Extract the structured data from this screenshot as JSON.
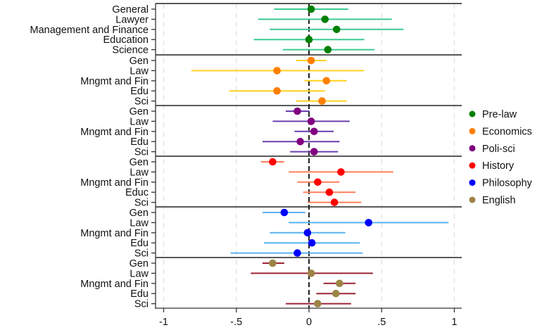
{
  "chart_data": {
    "type": "scatter",
    "subtype": "coefficient-plot-with-confidence-intervals",
    "title": "",
    "xlabel": "",
    "ylabel": "",
    "xlim": [
      -1.05,
      1.05
    ],
    "x_ticks": [
      -1,
      -0.5,
      0,
      0.5,
      1
    ],
    "x_tick_labels": [
      "-1",
      "-.5",
      "0",
      ".5",
      "1"
    ],
    "reference_line_x": 0,
    "grid": "vertical dashed at x ticks",
    "legend_position": "right",
    "series": [
      {
        "name": "Pre-law",
        "point_color": "#008000",
        "ci_color": "#3cc991",
        "labels": [
          "General",
          "Lawyer",
          "Management and Finance",
          "Education",
          "Science"
        ],
        "estimates": [
          0.015,
          0.11,
          0.19,
          0.0,
          0.13
        ],
        "ci_low": [
          -0.24,
          -0.35,
          -0.27,
          -0.38,
          -0.18
        ],
        "ci_high": [
          0.27,
          0.57,
          0.65,
          0.38,
          0.45
        ]
      },
      {
        "name": "Economics",
        "point_color": "#ff7f00",
        "ci_color": "#ffd21f",
        "labels": [
          "Gen",
          "Law",
          "Mngmt and Fin",
          "Edu",
          "Sci"
        ],
        "estimates": [
          0.015,
          -0.22,
          0.12,
          -0.22,
          0.09
        ],
        "ci_low": [
          -0.09,
          -0.81,
          -0.03,
          -0.55,
          -0.09
        ],
        "ci_high": [
          0.12,
          0.38,
          0.26,
          0.11,
          0.26
        ]
      },
      {
        "name": "Poli-sci",
        "point_color": "#800080",
        "ci_color": "#6a3fb0",
        "labels": [
          "Gen",
          "Law",
          "Mngmt and Fin",
          "Edu",
          "Sci"
        ],
        "estimates": [
          -0.08,
          0.015,
          0.035,
          -0.06,
          0.035
        ],
        "ci_low": [
          -0.16,
          -0.25,
          -0.1,
          -0.32,
          -0.13
        ],
        "ci_high": [
          0.005,
          0.28,
          0.17,
          0.21,
          0.2
        ]
      },
      {
        "name": "History",
        "point_color": "#ff0000",
        "ci_color": "#ff7f5a",
        "labels": [
          "Gen",
          "Law",
          "Mngmt and Fin",
          "Educ",
          "Sci"
        ],
        "estimates": [
          -0.25,
          0.22,
          0.06,
          0.14,
          0.175
        ],
        "ci_low": [
          -0.33,
          -0.14,
          -0.08,
          -0.04,
          -0.01
        ],
        "ci_high": [
          -0.17,
          0.58,
          0.21,
          0.32,
          0.36
        ]
      },
      {
        "name": "Philosophy",
        "point_color": "#0000ff",
        "ci_color": "#5ab4f0",
        "labels": [
          "Gen",
          "Law",
          "Mngmt and Fin",
          "Edu",
          "Sci"
        ],
        "estimates": [
          -0.17,
          0.41,
          -0.01,
          0.02,
          -0.08
        ],
        "ci_low": [
          -0.32,
          -0.14,
          -0.27,
          -0.31,
          -0.54
        ],
        "ci_high": [
          -0.025,
          0.96,
          0.25,
          0.35,
          0.37
        ]
      },
      {
        "name": "English",
        "point_color": "#9c8445",
        "ci_color": "#9b2335",
        "labels": [
          "Gen",
          "Law",
          "Mngmt and Fin",
          "Edu",
          "Sci"
        ],
        "estimates": [
          -0.25,
          0.015,
          0.21,
          0.185,
          0.06
        ],
        "ci_low": [
          -0.32,
          -0.4,
          0.1,
          0.05,
          -0.16
        ],
        "ci_high": [
          -0.17,
          0.44,
          0.32,
          0.32,
          0.29
        ]
      }
    ]
  }
}
